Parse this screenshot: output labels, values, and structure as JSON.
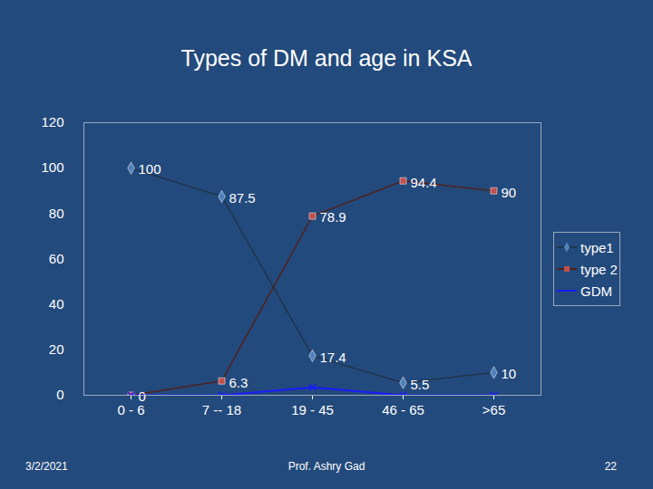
{
  "chart_data": {
    "type": "line",
    "title": "Types of DM and age in KSA",
    "categories": [
      "0 - 6",
      "7 -- 18",
      "19 - 45",
      "46 - 65",
      ">65"
    ],
    "series": [
      {
        "name": "type1",
        "color": "#4f81bd",
        "marker": "diamond",
        "values": [
          100,
          87.5,
          17.4,
          5.5,
          10
        ]
      },
      {
        "name": "type 2",
        "color": "#c0504d",
        "marker": "square",
        "values": [
          0,
          6.3,
          78.9,
          94.4,
          90
        ]
      },
      {
        "name": "GDM",
        "color": "#1a1aff",
        "marker": "x",
        "values": [
          0,
          0,
          3.5,
          0,
          0
        ],
        "data_labels": false
      }
    ],
    "ylim": [
      0,
      120
    ],
    "yticks": [
      0,
      20,
      40,
      60,
      80,
      100,
      120
    ],
    "grid": false,
    "legend": "right",
    "data_labels": true
  },
  "footer": {
    "date": "3/2/2021",
    "author": "Prof. Ashry Gad",
    "page": "22"
  }
}
